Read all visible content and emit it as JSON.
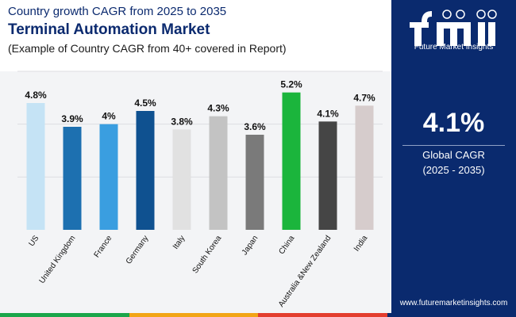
{
  "header": {
    "subtitle": "Country growth CAGR from 2025 to 2035",
    "title": "Terminal Automation Market",
    "note": "(Example of Country CAGR from 40+ covered in Report)"
  },
  "sidebar": {
    "brand_text": "Future Market Insights",
    "headline_value": "4.1%",
    "headline_label": "Global CAGR",
    "headline_period": "(2025 - 2035)",
    "url": "www.futuremarketinsights.com"
  },
  "colors": {
    "panel": "#0a2a6e",
    "title": "#0b2a6f",
    "bottom_bar": [
      "#1aa64a",
      "#f2a516",
      "#e33d2e",
      "#0a2a6e"
    ]
  },
  "chart_data": {
    "type": "bar",
    "title": "Terminal Automation Market",
    "categories": [
      "US",
      "United Kingdom",
      "France",
      "Germany",
      "Italy",
      "South Korea",
      "Japan",
      "China",
      "Australia &New Zealand",
      "India"
    ],
    "values": [
      4.8,
      3.9,
      4.0,
      4.5,
      3.8,
      4.3,
      3.6,
      5.2,
      4.1,
      4.7
    ],
    "value_labels": [
      "4.8%",
      "3.9%",
      "4%",
      "4.5%",
      "3.8%",
      "4.3%",
      "3.6%",
      "5.2%",
      "4.1%",
      "4.7%"
    ],
    "bar_colors": [
      "#c5e3f5",
      "#1d70b0",
      "#3a9ee0",
      "#0f5190",
      "#e1e1e1",
      "#c3c3c3",
      "#7a7a7a",
      "#1bb53c",
      "#454545",
      "#d6cccc"
    ],
    "ylim": [
      0,
      6
    ],
    "xlabel": "",
    "ylabel": "",
    "grid": true,
    "legend": "none"
  }
}
